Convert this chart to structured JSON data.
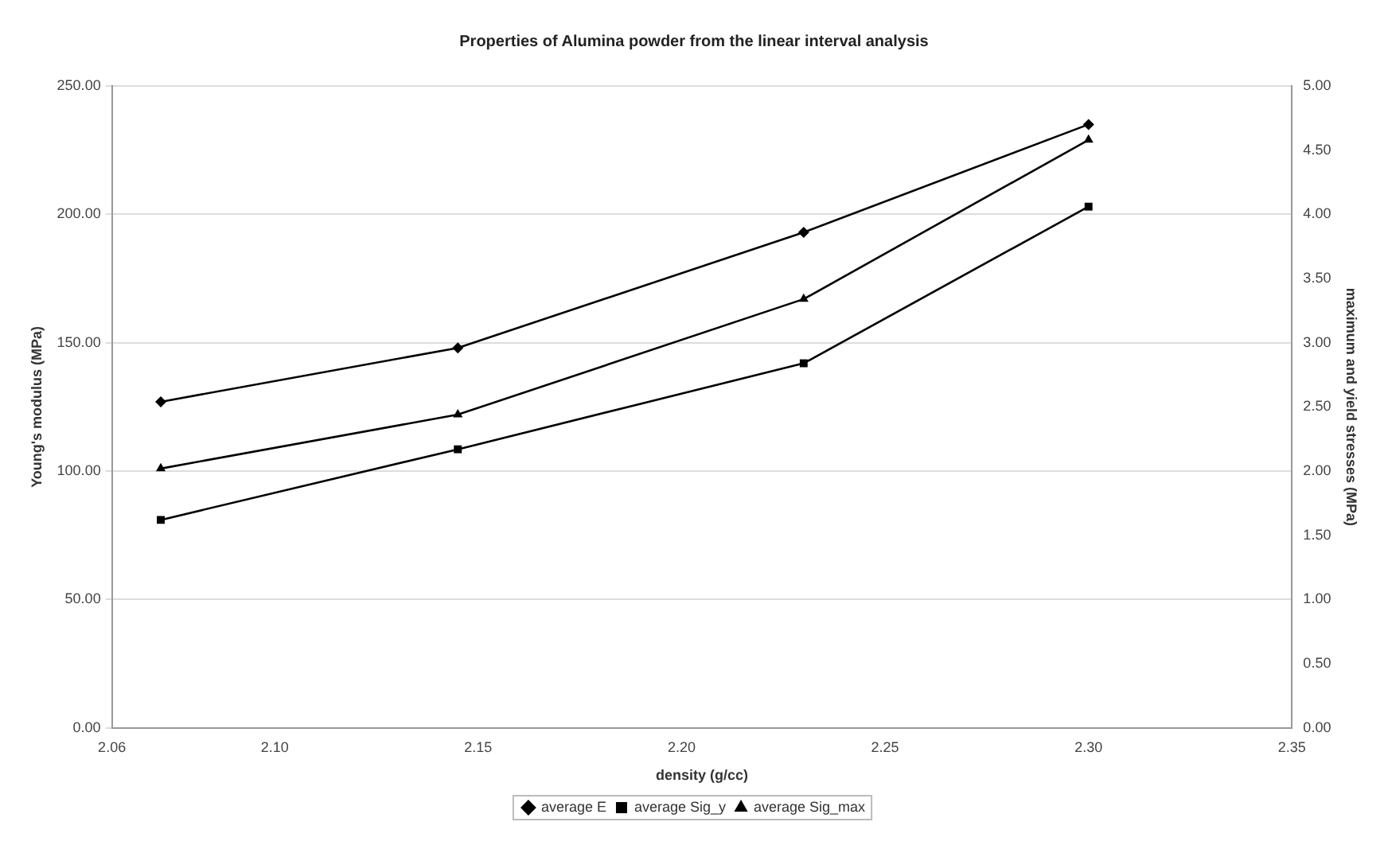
{
  "chart_data": {
    "type": "line",
    "title": "Properties of Alumina powder from the linear interval analysis",
    "xlabel": "density (g/cc)",
    "ylabel": "Young's modulus (MPa)",
    "y2label": "maximum and yield stresses (MPa)",
    "x": [
      2.072,
      2.145,
      2.23,
      2.3
    ],
    "series": [
      {
        "name": "average E",
        "color": "#000000",
        "marker": "diamond",
        "values": [
          127,
          148,
          193,
          235
        ]
      },
      {
        "name": "average Sig_y",
        "color": "#000000",
        "marker": "square",
        "axis": "y2",
        "values": [
          1.62,
          2.17,
          2.84,
          4.06
        ]
      },
      {
        "name": "average Sig_max",
        "color": "#000000",
        "marker": "triangle",
        "axis": "y2",
        "values": [
          2.02,
          2.44,
          3.34,
          4.58
        ]
      }
    ],
    "xlim": [
      2.06,
      2.35
    ],
    "xticks": [
      2.06,
      {
        "value": 2.1,
        "label": "2.10"
      },
      2.15,
      {
        "value": 2.2,
        "label": "2.20"
      },
      2.25,
      {
        "value": 2.3,
        "label": "2.30"
      },
      2.35
    ],
    "ylim": [
      0,
      250
    ],
    "yticks": [
      {
        "value": 0,
        "label": "0.00"
      },
      {
        "value": 50,
        "label": "50.00"
      },
      {
        "value": 100,
        "label": "100.00"
      },
      {
        "value": 150,
        "label": "150.00"
      },
      {
        "value": 200,
        "label": "200.00"
      },
      {
        "value": 250,
        "label": "250.00"
      }
    ],
    "y2lim": [
      0,
      5
    ],
    "y2ticks": [
      {
        "value": 0,
        "label": "0.00"
      },
      {
        "value": 0.5,
        "label": "0.50"
      },
      {
        "value": 1,
        "label": "1.00"
      },
      {
        "value": 1.5,
        "label": "1.50"
      },
      {
        "value": 2,
        "label": "2.00"
      },
      {
        "value": 2.5,
        "label": "2.50"
      },
      {
        "value": 3,
        "label": "3.00"
      },
      {
        "value": 3.5,
        "label": "3.50"
      },
      {
        "value": 4,
        "label": "4.00"
      },
      {
        "value": 4.5,
        "label": "4.50"
      },
      {
        "value": 5,
        "label": "5.00"
      }
    ],
    "grid": "y",
    "legend": "bottom",
    "line_style": "solid"
  }
}
